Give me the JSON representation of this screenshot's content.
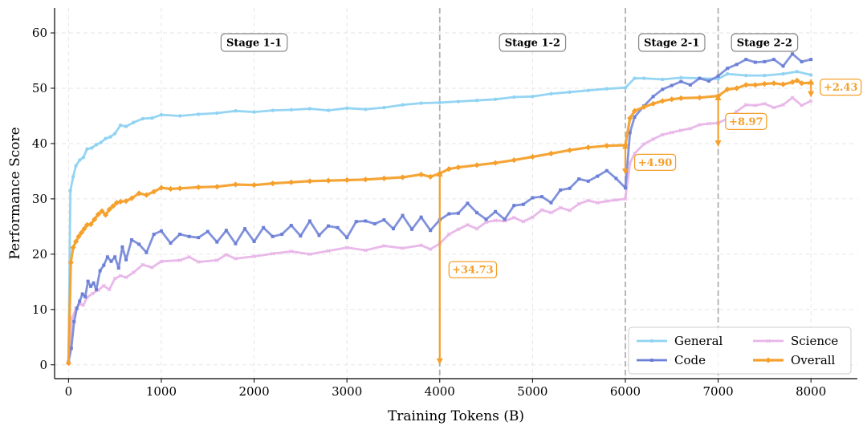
{
  "chart_data": {
    "type": "line",
    "title": "",
    "xlabel": "Training Tokens (B)",
    "ylabel": "Performance Score",
    "xlim": [
      -150,
      8500
    ],
    "ylim": [
      -2.5,
      64.5
    ],
    "xticks": [
      0,
      1000,
      2000,
      3000,
      4000,
      5000,
      6000,
      7000,
      8000
    ],
    "yticks": [
      0,
      10,
      20,
      30,
      40,
      50,
      60
    ],
    "grid": true,
    "legend_position": "bottom-right",
    "stage_boundaries": [
      4000,
      6000,
      7000
    ],
    "stages": [
      {
        "label": "Stage 1-1",
        "x": 2000
      },
      {
        "label": "Stage 1-2",
        "x": 5000
      },
      {
        "label": "Stage 2-1",
        "x": 6500
      },
      {
        "label": "Stage 2-2",
        "x": 7500
      }
    ],
    "annotations": [
      {
        "label": "+34.73",
        "x": 4000,
        "y_from": 0.6,
        "y_to": 34.6,
        "label_x": 4100,
        "label_y": 17.2
      },
      {
        "label": "+4.90",
        "x": 6000,
        "y_from": 34.9,
        "y_to": 39.6,
        "label_x": 6100,
        "label_y": 36.6
      },
      {
        "label": "+8.97",
        "x": 7000,
        "y_from": 40.0,
        "y_to": 48.4,
        "label_x": 7080,
        "label_y": 44.0
      },
      {
        "label": "+2.43",
        "x": 8000,
        "y_from": 48.9,
        "y_to": 51.2,
        "label_x": 8100,
        "label_y": 50.2
      }
    ],
    "series": [
      {
        "name": "General",
        "color": "#8fd3f2",
        "marker": "circle",
        "points": [
          [
            0,
            0.3
          ],
          [
            20,
            31.5
          ],
          [
            50,
            34.0
          ],
          [
            80,
            36.0
          ],
          [
            120,
            37.0
          ],
          [
            160,
            37.5
          ],
          [
            200,
            39.0
          ],
          [
            250,
            39.2
          ],
          [
            300,
            39.8
          ],
          [
            350,
            40.2
          ],
          [
            400,
            40.9
          ],
          [
            450,
            41.2
          ],
          [
            500,
            41.8
          ],
          [
            560,
            43.3
          ],
          [
            620,
            43.1
          ],
          [
            700,
            43.8
          ],
          [
            800,
            44.5
          ],
          [
            900,
            44.6
          ],
          [
            1000,
            45.2
          ],
          [
            1200,
            45.0
          ],
          [
            1400,
            45.3
          ],
          [
            1600,
            45.5
          ],
          [
            1800,
            45.9
          ],
          [
            2000,
            45.7
          ],
          [
            2200,
            46.0
          ],
          [
            2400,
            46.1
          ],
          [
            2600,
            46.3
          ],
          [
            2800,
            46.0
          ],
          [
            3000,
            46.4
          ],
          [
            3200,
            46.2
          ],
          [
            3400,
            46.5
          ],
          [
            3600,
            47.0
          ],
          [
            3800,
            47.3
          ],
          [
            4000,
            47.4
          ],
          [
            4200,
            47.6
          ],
          [
            4400,
            47.8
          ],
          [
            4600,
            48.0
          ],
          [
            4800,
            48.4
          ],
          [
            5000,
            48.5
          ],
          [
            5200,
            49.0
          ],
          [
            5400,
            49.3
          ],
          [
            5600,
            49.6
          ],
          [
            5800,
            49.9
          ],
          [
            6000,
            50.1
          ],
          [
            6100,
            51.8
          ],
          [
            6200,
            51.8
          ],
          [
            6400,
            51.6
          ],
          [
            6600,
            51.9
          ],
          [
            6800,
            51.8
          ],
          [
            7000,
            51.7
          ],
          [
            7100,
            52.6
          ],
          [
            7300,
            52.3
          ],
          [
            7500,
            52.3
          ],
          [
            7700,
            52.6
          ],
          [
            7850,
            53.0
          ],
          [
            8000,
            52.4
          ]
        ]
      },
      {
        "name": "Code",
        "color": "#6b7fd6",
        "marker": "square",
        "points": [
          [
            0,
            0.5
          ],
          [
            30,
            3.0
          ],
          [
            60,
            7.8
          ],
          [
            90,
            10.2
          ],
          [
            120,
            11.5
          ],
          [
            150,
            12.8
          ],
          [
            180,
            12.3
          ],
          [
            210,
            15.1
          ],
          [
            240,
            14.2
          ],
          [
            270,
            14.8
          ],
          [
            300,
            13.6
          ],
          [
            340,
            17.0
          ],
          [
            380,
            18.0
          ],
          [
            420,
            19.5
          ],
          [
            460,
            18.7
          ],
          [
            500,
            19.5
          ],
          [
            540,
            17.5
          ],
          [
            580,
            21.3
          ],
          [
            620,
            19.0
          ],
          [
            680,
            22.6
          ],
          [
            760,
            21.8
          ],
          [
            840,
            20.3
          ],
          [
            920,
            23.6
          ],
          [
            1000,
            24.2
          ],
          [
            1100,
            22.0
          ],
          [
            1200,
            23.6
          ],
          [
            1300,
            23.2
          ],
          [
            1400,
            23.0
          ],
          [
            1500,
            24.1
          ],
          [
            1600,
            22.2
          ],
          [
            1700,
            24.3
          ],
          [
            1800,
            21.9
          ],
          [
            1900,
            24.6
          ],
          [
            2000,
            22.3
          ],
          [
            2100,
            24.8
          ],
          [
            2200,
            23.2
          ],
          [
            2300,
            23.6
          ],
          [
            2400,
            25.2
          ],
          [
            2500,
            23.3
          ],
          [
            2600,
            26.0
          ],
          [
            2700,
            23.4
          ],
          [
            2800,
            25.1
          ],
          [
            2900,
            24.8
          ],
          [
            3000,
            23.0
          ],
          [
            3100,
            25.9
          ],
          [
            3200,
            26.0
          ],
          [
            3300,
            25.5
          ],
          [
            3400,
            26.2
          ],
          [
            3500,
            24.6
          ],
          [
            3600,
            27.0
          ],
          [
            3700,
            24.5
          ],
          [
            3800,
            26.7
          ],
          [
            3900,
            24.3
          ],
          [
            4000,
            26.2
          ],
          [
            4100,
            27.3
          ],
          [
            4200,
            27.4
          ],
          [
            4300,
            29.2
          ],
          [
            4400,
            27.5
          ],
          [
            4500,
            26.3
          ],
          [
            4600,
            27.7
          ],
          [
            4700,
            26.3
          ],
          [
            4800,
            28.8
          ],
          [
            4900,
            29.0
          ],
          [
            5000,
            30.2
          ],
          [
            5100,
            30.4
          ],
          [
            5200,
            29.3
          ],
          [
            5300,
            31.6
          ],
          [
            5400,
            31.9
          ],
          [
            5500,
            33.6
          ],
          [
            5600,
            33.2
          ],
          [
            5700,
            34.1
          ],
          [
            5800,
            35.1
          ],
          [
            5900,
            33.7
          ],
          [
            6000,
            32.0
          ],
          [
            6050,
            42.0
          ],
          [
            6100,
            44.8
          ],
          [
            6200,
            46.8
          ],
          [
            6300,
            48.5
          ],
          [
            6400,
            49.8
          ],
          [
            6500,
            50.5
          ],
          [
            6600,
            51.2
          ],
          [
            6700,
            50.6
          ],
          [
            6800,
            51.8
          ],
          [
            6900,
            51.3
          ],
          [
            7000,
            52.2
          ],
          [
            7100,
            53.6
          ],
          [
            7200,
            54.3
          ],
          [
            7300,
            55.2
          ],
          [
            7400,
            54.7
          ],
          [
            7500,
            54.8
          ],
          [
            7600,
            55.2
          ],
          [
            7700,
            54.0
          ],
          [
            7800,
            56.2
          ],
          [
            7900,
            54.8
          ],
          [
            8000,
            55.2
          ]
        ]
      },
      {
        "name": "Science",
        "color": "#e8b5e8",
        "marker": "x",
        "points": [
          [
            0,
            0.4
          ],
          [
            40,
            8.5
          ],
          [
            80,
            10.2
          ],
          [
            120,
            11.0
          ],
          [
            160,
            10.8
          ],
          [
            200,
            12.2
          ],
          [
            260,
            12.9
          ],
          [
            320,
            13.5
          ],
          [
            380,
            14.3
          ],
          [
            440,
            13.6
          ],
          [
            500,
            15.6
          ],
          [
            560,
            16.1
          ],
          [
            620,
            15.8
          ],
          [
            700,
            16.7
          ],
          [
            800,
            18.1
          ],
          [
            900,
            17.6
          ],
          [
            1000,
            18.7
          ],
          [
            1200,
            18.9
          ],
          [
            1300,
            19.5
          ],
          [
            1400,
            18.6
          ],
          [
            1600,
            18.9
          ],
          [
            1700,
            19.9
          ],
          [
            1800,
            19.2
          ],
          [
            2000,
            19.6
          ],
          [
            2200,
            20.1
          ],
          [
            2400,
            20.5
          ],
          [
            2600,
            20.0
          ],
          [
            2800,
            20.6
          ],
          [
            3000,
            21.2
          ],
          [
            3200,
            20.7
          ],
          [
            3400,
            21.5
          ],
          [
            3600,
            21.1
          ],
          [
            3800,
            21.6
          ],
          [
            3900,
            20.9
          ],
          [
            4000,
            21.9
          ],
          [
            4100,
            23.6
          ],
          [
            4200,
            24.5
          ],
          [
            4300,
            25.3
          ],
          [
            4400,
            24.6
          ],
          [
            4500,
            25.8
          ],
          [
            4600,
            26.1
          ],
          [
            4700,
            26.0
          ],
          [
            4800,
            26.6
          ],
          [
            4900,
            25.9
          ],
          [
            5000,
            26.7
          ],
          [
            5100,
            28.0
          ],
          [
            5200,
            27.5
          ],
          [
            5300,
            28.4
          ],
          [
            5400,
            27.9
          ],
          [
            5500,
            29.1
          ],
          [
            5600,
            29.7
          ],
          [
            5700,
            29.3
          ],
          [
            5800,
            29.6
          ],
          [
            5900,
            29.8
          ],
          [
            6000,
            30.0
          ],
          [
            6050,
            36.5
          ],
          [
            6100,
            38.2
          ],
          [
            6200,
            39.9
          ],
          [
            6300,
            40.8
          ],
          [
            6400,
            41.6
          ],
          [
            6500,
            42.0
          ],
          [
            6600,
            42.4
          ],
          [
            6700,
            42.7
          ],
          [
            6800,
            43.4
          ],
          [
            6900,
            43.6
          ],
          [
            7000,
            43.7
          ],
          [
            7100,
            44.5
          ],
          [
            7200,
            45.8
          ],
          [
            7300,
            47.0
          ],
          [
            7400,
            46.9
          ],
          [
            7500,
            47.2
          ],
          [
            7600,
            46.5
          ],
          [
            7700,
            47.0
          ],
          [
            7800,
            48.3
          ],
          [
            7900,
            46.9
          ],
          [
            8000,
            47.7
          ]
        ]
      },
      {
        "name": "Overall",
        "color": "#f5a02c",
        "marker": "diamond",
        "points": [
          [
            0,
            0.3
          ],
          [
            25,
            18.5
          ],
          [
            50,
            21.2
          ],
          [
            80,
            22.3
          ],
          [
            110,
            23.2
          ],
          [
            140,
            23.9
          ],
          [
            170,
            24.6
          ],
          [
            200,
            25.3
          ],
          [
            240,
            25.4
          ],
          [
            280,
            26.3
          ],
          [
            320,
            27.2
          ],
          [
            360,
            27.8
          ],
          [
            400,
            27.1
          ],
          [
            440,
            28.1
          ],
          [
            480,
            28.7
          ],
          [
            520,
            29.3
          ],
          [
            560,
            29.5
          ],
          [
            620,
            29.6
          ],
          [
            680,
            30.1
          ],
          [
            760,
            31.0
          ],
          [
            840,
            30.7
          ],
          [
            920,
            31.3
          ],
          [
            1000,
            32.0
          ],
          [
            1100,
            31.8
          ],
          [
            1200,
            31.9
          ],
          [
            1400,
            32.1
          ],
          [
            1600,
            32.2
          ],
          [
            1800,
            32.6
          ],
          [
            2000,
            32.5
          ],
          [
            2200,
            32.8
          ],
          [
            2400,
            33.0
          ],
          [
            2600,
            33.2
          ],
          [
            2800,
            33.3
          ],
          [
            3000,
            33.4
          ],
          [
            3200,
            33.5
          ],
          [
            3400,
            33.7
          ],
          [
            3600,
            33.9
          ],
          [
            3800,
            34.4
          ],
          [
            3900,
            34.0
          ],
          [
            4000,
            34.6
          ],
          [
            4100,
            35.4
          ],
          [
            4200,
            35.7
          ],
          [
            4400,
            36.1
          ],
          [
            4600,
            36.5
          ],
          [
            4800,
            37.0
          ],
          [
            5000,
            37.6
          ],
          [
            5200,
            38.2
          ],
          [
            5400,
            38.8
          ],
          [
            5600,
            39.3
          ],
          [
            5800,
            39.6
          ],
          [
            6000,
            39.7
          ],
          [
            6050,
            44.6
          ],
          [
            6100,
            45.9
          ],
          [
            6200,
            46.6
          ],
          [
            6300,
            47.2
          ],
          [
            6400,
            47.7
          ],
          [
            6500,
            48.0
          ],
          [
            6600,
            48.2
          ],
          [
            6800,
            48.3
          ],
          [
            7000,
            48.6
          ],
          [
            7100,
            49.8
          ],
          [
            7200,
            50.0
          ],
          [
            7300,
            50.6
          ],
          [
            7400,
            50.6
          ],
          [
            7500,
            50.8
          ],
          [
            7600,
            50.9
          ],
          [
            7700,
            50.7
          ],
          [
            7800,
            51.1
          ],
          [
            7850,
            51.4
          ],
          [
            7900,
            50.9
          ],
          [
            8000,
            51.0
          ]
        ]
      }
    ]
  }
}
